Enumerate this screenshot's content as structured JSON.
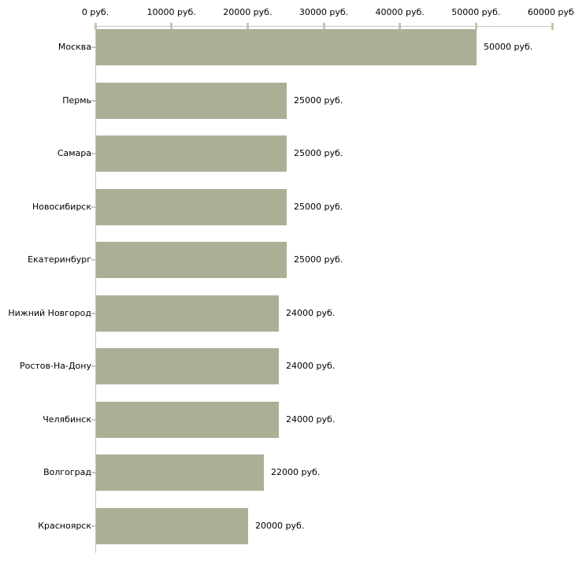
{
  "chart_data": {
    "type": "bar",
    "orientation": "horizontal",
    "title": "",
    "xlabel": "",
    "ylabel": "",
    "unit": "руб.",
    "xlim": [
      0,
      60000
    ],
    "grid": false,
    "legend": false,
    "x_ticks": [
      {
        "value": 0,
        "label": "0 руб."
      },
      {
        "value": 10000,
        "label": "10000 руб."
      },
      {
        "value": 20000,
        "label": "20000 руб."
      },
      {
        "value": 30000,
        "label": "30000 руб."
      },
      {
        "value": 40000,
        "label": "40000 руб."
      },
      {
        "value": 50000,
        "label": "50000 руб."
      },
      {
        "value": 60000,
        "label": "60000 руб."
      }
    ],
    "categories": [
      "Москва",
      "Пермь",
      "Самара",
      "Новосибирск",
      "Екатеринбург",
      "Нижний Новгород",
      "Ростов-На-Дону",
      "Челябинск",
      "Волгоград",
      "Красноярск"
    ],
    "values": [
      50000,
      25000,
      25000,
      25000,
      25000,
      24000,
      24000,
      24000,
      22000,
      20000
    ],
    "value_labels": [
      "50000 руб.",
      "25000 руб.",
      "25000 руб.",
      "25000 руб.",
      "25000 руб.",
      "24000 руб.",
      "24000 руб.",
      "24000 руб.",
      "22000 руб.",
      "20000 руб."
    ],
    "colors": {
      "bar": "#aab095",
      "axis_line": "#c6c6c6",
      "x_tick": "#c3c7ac",
      "y_tick": "#c6c6c0",
      "text": "#000000",
      "background": "#ffffff"
    }
  }
}
